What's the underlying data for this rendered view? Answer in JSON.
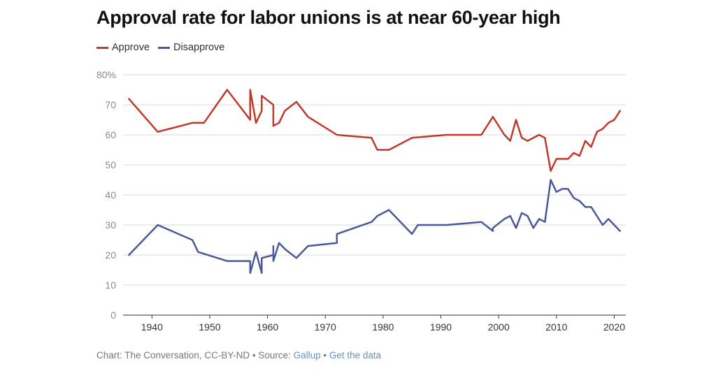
{
  "chart_data": {
    "type": "line",
    "title": "Approval rate for labor unions is at near 60-year high",
    "xlabel": "",
    "ylabel": "",
    "xlim": [
      1935,
      2022
    ],
    "ylim": [
      0,
      80
    ],
    "y_ticks": [
      0,
      10,
      20,
      30,
      40,
      50,
      60,
      70,
      80
    ],
    "y_tick_labels": [
      "0",
      "10",
      "20",
      "30",
      "40",
      "50",
      "60",
      "70",
      "80%"
    ],
    "x_ticks": [
      1940,
      1950,
      1960,
      1970,
      1980,
      1990,
      2000,
      2010,
      2020
    ],
    "x_tick_labels": [
      "1940",
      "1950",
      "1960",
      "1970",
      "1980",
      "1990",
      "2000",
      "2010",
      "2020"
    ],
    "grid": true,
    "legend_position": "top-left",
    "series": [
      {
        "name": "Approve",
        "color": "#c0392b",
        "points": [
          [
            1936,
            72
          ],
          [
            1941,
            61
          ],
          [
            1947,
            64
          ],
          [
            1949,
            64
          ],
          [
            1953,
            75
          ],
          [
            1957,
            65
          ],
          [
            1957,
            75
          ],
          [
            1958,
            64
          ],
          [
            1959,
            68
          ],
          [
            1959,
            73
          ],
          [
            1961,
            70
          ],
          [
            1961,
            63
          ],
          [
            1962,
            64
          ],
          [
            1963,
            68
          ],
          [
            1965,
            71
          ],
          [
            1967,
            66
          ],
          [
            1972,
            60
          ],
          [
            1978,
            59
          ],
          [
            1979,
            55
          ],
          [
            1981,
            55
          ],
          [
            1985,
            59
          ],
          [
            1991,
            60
          ],
          [
            1997,
            60
          ],
          [
            1999,
            66
          ],
          [
            2001,
            60
          ],
          [
            2002,
            58
          ],
          [
            2003,
            65
          ],
          [
            2004,
            59
          ],
          [
            2005,
            58
          ],
          [
            2007,
            60
          ],
          [
            2008,
            59
          ],
          [
            2009,
            48
          ],
          [
            2010,
            52
          ],
          [
            2012,
            52
          ],
          [
            2013,
            54
          ],
          [
            2014,
            53
          ],
          [
            2015,
            58
          ],
          [
            2016,
            56
          ],
          [
            2017,
            61
          ],
          [
            2018,
            62
          ],
          [
            2019,
            64
          ],
          [
            2020,
            65
          ],
          [
            2021,
            68
          ]
        ]
      },
      {
        "name": "Disapprove",
        "color": "#4a5899",
        "points": [
          [
            1936,
            20
          ],
          [
            1941,
            30
          ],
          [
            1947,
            25
          ],
          [
            1948,
            21
          ],
          [
            1953,
            18
          ],
          [
            1957,
            18
          ],
          [
            1957,
            14
          ],
          [
            1958,
            21
          ],
          [
            1959,
            14
          ],
          [
            1959,
            19
          ],
          [
            1961,
            20
          ],
          [
            1961,
            23
          ],
          [
            1961,
            18
          ],
          [
            1962,
            24
          ],
          [
            1963,
            22
          ],
          [
            1965,
            19
          ],
          [
            1967,
            23
          ],
          [
            1972,
            24
          ],
          [
            1972,
            27
          ],
          [
            1978,
            31
          ],
          [
            1979,
            33
          ],
          [
            1981,
            35
          ],
          [
            1985,
            27
          ],
          [
            1986,
            30
          ],
          [
            1991,
            30
          ],
          [
            1997,
            31
          ],
          [
            1999,
            28
          ],
          [
            1999,
            29
          ],
          [
            2001,
            32
          ],
          [
            2002,
            33
          ],
          [
            2003,
            29
          ],
          [
            2004,
            34
          ],
          [
            2005,
            33
          ],
          [
            2006,
            29
          ],
          [
            2007,
            32
          ],
          [
            2008,
            31
          ],
          [
            2009,
            45
          ],
          [
            2010,
            41
          ],
          [
            2011,
            42
          ],
          [
            2012,
            42
          ],
          [
            2013,
            39
          ],
          [
            2014,
            38
          ],
          [
            2015,
            36
          ],
          [
            2016,
            36
          ],
          [
            2018,
            30
          ],
          [
            2019,
            32
          ],
          [
            2021,
            28
          ]
        ]
      }
    ]
  },
  "footer": {
    "prefix": "Chart: The Conversation, CC-BY-ND • Source: ",
    "source_link": "Gallup",
    "separator": " • ",
    "data_link": "Get the data"
  }
}
